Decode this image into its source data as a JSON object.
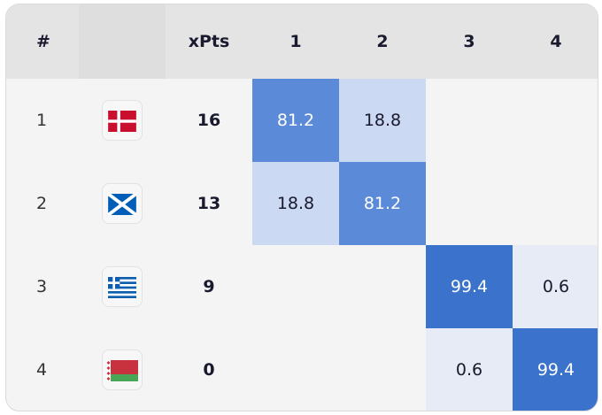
{
  "headers": {
    "rank": "#",
    "xpts": "xPts",
    "positions": [
      "1",
      "2",
      "3",
      "4"
    ]
  },
  "colors": {
    "strong": "#3b72cb",
    "medium": "#5a8ad8",
    "light": "#ccd9f2",
    "faint": "#e6ebf5",
    "strong_text": "#ffffff",
    "light_text": "#1a1a2e"
  },
  "rows": [
    {
      "rank": "1",
      "flag_icon": "denmark-flag-icon",
      "xpts": "16",
      "cells": [
        "81.2",
        "18.8",
        "",
        ""
      ],
      "levels": [
        "medium",
        "light",
        "",
        ""
      ]
    },
    {
      "rank": "2",
      "flag_icon": "scotland-flag-icon",
      "xpts": "13",
      "cells": [
        "18.8",
        "81.2",
        "",
        ""
      ],
      "levels": [
        "light",
        "medium",
        "",
        ""
      ]
    },
    {
      "rank": "3",
      "flag_icon": "greece-flag-icon",
      "xpts": "9",
      "cells": [
        "",
        "",
        "99.4",
        "0.6"
      ],
      "levels": [
        "",
        "",
        "strong",
        "faint"
      ]
    },
    {
      "rank": "4",
      "flag_icon": "belarus-flag-icon",
      "xpts": "0",
      "cells": [
        "",
        "",
        "0.6",
        "99.4"
      ],
      "levels": [
        "",
        "",
        "faint",
        "strong"
      ]
    }
  ]
}
